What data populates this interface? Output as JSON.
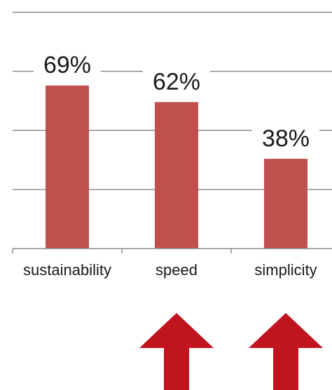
{
  "chart_data": {
    "type": "bar",
    "categories": [
      "sustainability",
      "speed",
      "simplicity"
    ],
    "values": [
      69,
      62,
      38
    ],
    "data_labels": [
      "69%",
      "62%",
      "38%"
    ],
    "title": "",
    "xlabel": "",
    "ylabel": "",
    "ylim": [
      0,
      100
    ],
    "grid": true,
    "bar_color": "#c0504d",
    "gridline_color": "#8c8c8c",
    "arrow_color": "#c0141f"
  },
  "annotations": {
    "arrows": [
      {
        "icon": "up-arrow-icon",
        "category": "speed"
      },
      {
        "icon": "up-arrow-icon",
        "category": "simplicity"
      }
    ]
  }
}
